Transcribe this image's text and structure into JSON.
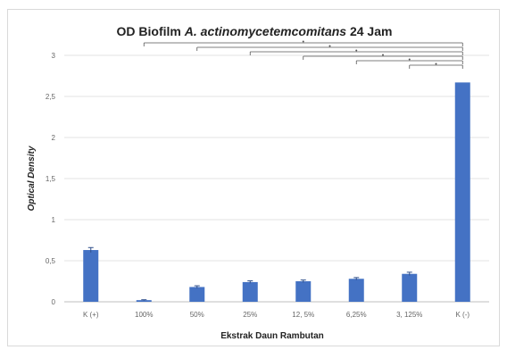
{
  "chart_data": {
    "type": "bar",
    "title_parts": [
      "OD Biofilm ",
      "A. actinomycetemcomitans",
      " 24 Jam"
    ],
    "xlabel": "Ekstrak Daun Rambutan",
    "ylabel": "Optical Density",
    "categories": [
      "K (+)",
      "100%",
      "50%",
      "25%",
      "12, 5%",
      "6,25%",
      "3, 125%",
      "K (-)"
    ],
    "values": [
      0.63,
      0.02,
      0.18,
      0.24,
      0.25,
      0.28,
      0.34,
      2.67
    ],
    "errors": [
      0.03,
      0.005,
      0.015,
      0.015,
      0.015,
      0.015,
      0.02,
      0.0
    ],
    "ylim": [
      0,
      3
    ],
    "yticks": [
      "0",
      "0,5",
      "1",
      "1,5",
      "2",
      "2,5",
      "3"
    ],
    "ytick_values": [
      0,
      0.5,
      1,
      1.5,
      2,
      2.5,
      3
    ],
    "grid": true,
    "bar_color": "#4472c4",
    "significance_brackets_to_last_bar": [
      1,
      2,
      3,
      4,
      5,
      6
    ]
  }
}
